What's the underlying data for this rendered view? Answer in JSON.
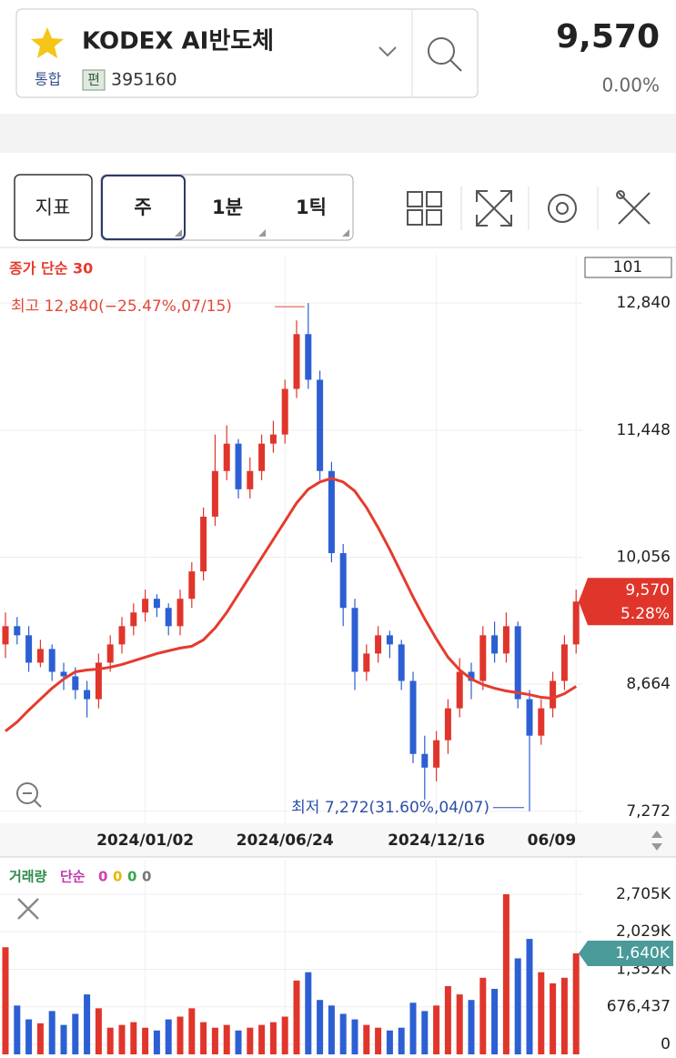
{
  "header": {
    "title": "KODEX AI반도체",
    "market": "통합",
    "badge": "편",
    "code": "395160",
    "price": "9,570",
    "change": "0.00%"
  },
  "toolbar": {
    "indicator": "지표",
    "periods": [
      "주",
      "1분",
      "1틱"
    ]
  },
  "chart_data": {
    "type": "candlestick",
    "categories": [
      null,
      null,
      null,
      null,
      null,
      null,
      null,
      null,
      null,
      null,
      null,
      null,
      "2024/01/02",
      null,
      null,
      null,
      null,
      null,
      null,
      null,
      null,
      null,
      null,
      null,
      "2024/06/24",
      null,
      null,
      null,
      null,
      null,
      null,
      null,
      null,
      null,
      null,
      null,
      null,
      "2024/12/16",
      null,
      null,
      null,
      null,
      null,
      null,
      null,
      null,
      null,
      null,
      null,
      "06/09"
    ],
    "open": [
      9100,
      9300,
      9200,
      8900,
      9050,
      8800,
      8750,
      8600,
      8500,
      8900,
      9100,
      9300,
      9450,
      9600,
      9500,
      9300,
      9600,
      9900,
      10500,
      11000,
      11300,
      10800,
      11000,
      11300,
      11400,
      11900,
      12500,
      12000,
      11000,
      10100,
      9500,
      8800,
      9000,
      9200,
      9100,
      8700,
      7900,
      7750,
      8050,
      8400,
      8800,
      8700,
      9200,
      9000,
      9300,
      8500,
      8100,
      8400,
      8700,
      9100
    ],
    "high": [
      9450,
      9400,
      9300,
      9150,
      9100,
      8900,
      8850,
      8700,
      9000,
      9200,
      9400,
      9550,
      9700,
      9650,
      9550,
      9700,
      10000,
      10600,
      11400,
      11500,
      11350,
      11150,
      11400,
      11550,
      12000,
      12650,
      12840,
      12100,
      11100,
      10200,
      9600,
      9100,
      9300,
      9250,
      9150,
      8800,
      8100,
      8150,
      8500,
      8950,
      8900,
      9300,
      9350,
      9450,
      9350,
      8600,
      8500,
      8800,
      9200,
      9700
    ],
    "low": [
      8950,
      9100,
      8800,
      8850,
      8700,
      8600,
      8500,
      8300,
      8400,
      8800,
      9000,
      9200,
      9350,
      9400,
      9200,
      9200,
      9500,
      9800,
      10400,
      10900,
      10700,
      10700,
      10900,
      11200,
      11300,
      11800,
      11900,
      10900,
      10000,
      9300,
      8600,
      8700,
      8900,
      8950,
      8600,
      7800,
      7400,
      7600,
      7900,
      8300,
      8500,
      8600,
      8900,
      8900,
      8400,
      7272,
      8000,
      8300,
      8600,
      9000
    ],
    "close": [
      9300,
      9200,
      8900,
      9050,
      8800,
      8750,
      8600,
      8500,
      8900,
      9100,
      9300,
      9450,
      9600,
      9500,
      9300,
      9600,
      9900,
      10500,
      11000,
      11300,
      10800,
      11000,
      11300,
      11400,
      11900,
      12500,
      12000,
      11000,
      10100,
      9500,
      8800,
      9000,
      9200,
      9100,
      8700,
      7900,
      7750,
      8050,
      8400,
      8800,
      8700,
      9200,
      9000,
      9300,
      8500,
      8100,
      8400,
      8700,
      9100,
      9570
    ],
    "up_color": "#e0352b",
    "down_color": "#2c5fd3",
    "ma": {
      "name": "종가 단순 30",
      "color": "#e53b2e",
      "values": [
        8150,
        8250,
        8380,
        8500,
        8620,
        8720,
        8800,
        8820,
        8830,
        8850,
        8880,
        8920,
        8960,
        9000,
        9030,
        9060,
        9080,
        9150,
        9280,
        9450,
        9650,
        9850,
        10050,
        10250,
        10450,
        10650,
        10800,
        10880,
        10920,
        10880,
        10780,
        10600,
        10380,
        10140,
        9880,
        9620,
        9380,
        9160,
        8960,
        8820,
        8720,
        8660,
        8620,
        8590,
        8570,
        8550,
        8520,
        8510,
        8560,
        8640
      ]
    },
    "ylim": [
      7140,
      13370
    ],
    "yticks": [
      {
        "value": 12840,
        "label": "12,840"
      },
      {
        "value": 11448,
        "label": "11,448"
      },
      {
        "value": 10056,
        "label": "10,056"
      },
      {
        "value": 8664,
        "label": "8,664"
      },
      {
        "value": 7272,
        "label": "7,272"
      }
    ],
    "visible_count": 101,
    "high_note": "최고 12,840(−25.47%,07/15)",
    "low_note": "최저 7,272(31.60%,04/07)",
    "price_badge": {
      "label": "9,570",
      "change": "5.28%"
    },
    "volume": {
      "name": "거래량",
      "ma_label": "단순",
      "ma_periods": [
        0,
        0,
        0,
        0
      ],
      "ma_colors": [
        "#d23fb0",
        "#e6b800",
        "#3aa64a",
        "#777777"
      ],
      "values": [
        1750000,
        700000,
        450000,
        380000,
        600000,
        350000,
        550000,
        900000,
        650000,
        300000,
        350000,
        400000,
        300000,
        250000,
        450000,
        500000,
        650000,
        400000,
        300000,
        350000,
        250000,
        300000,
        350000,
        400000,
        500000,
        1150000,
        1300000,
        800000,
        700000,
        550000,
        450000,
        350000,
        300000,
        250000,
        300000,
        750000,
        600000,
        700000,
        1050000,
        900000,
        800000,
        1200000,
        1000000,
        2705000,
        1550000,
        1900000,
        1300000,
        1100000,
        1200000,
        1640000
      ],
      "ylim": [
        0,
        3000000
      ],
      "yticks": [
        {
          "value": 2705000,
          "label": "2,705K"
        },
        {
          "value": 2029000,
          "label": "2,029K"
        },
        {
          "value": 1352000,
          "label": "1,352K"
        },
        {
          "value": 676437,
          "label": "676,437"
        },
        0
      ],
      "last_label": "1,640K"
    }
  }
}
